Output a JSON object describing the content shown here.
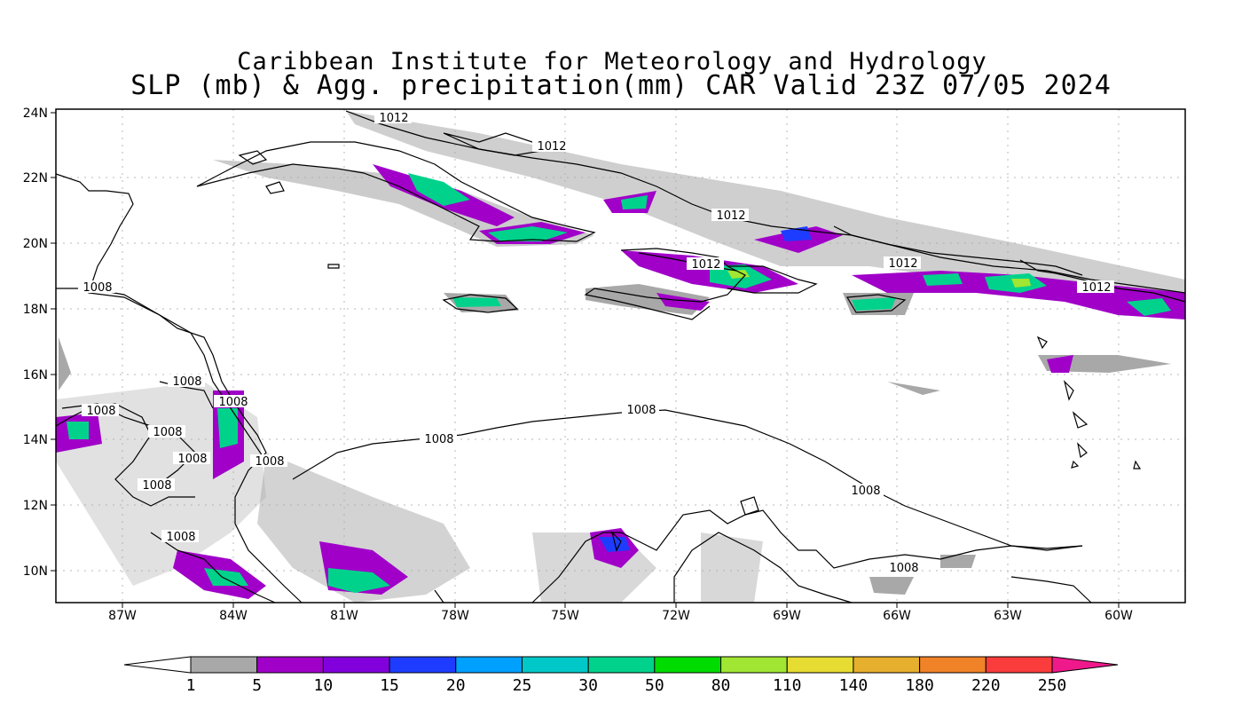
{
  "title": {
    "line1": "Caribbean Institute for Meteorology and Hydrology",
    "line2": "SLP (mb) & Agg. precipitation(mm) CAR Valid 23Z 07/05 2024"
  },
  "axes": {
    "lat_labels": [
      "24N",
      "22N",
      "20N",
      "18N",
      "16N",
      "14N",
      "12N",
      "10N"
    ],
    "lon_labels": [
      "87W",
      "84W",
      "81W",
      "78W",
      "75W",
      "72W",
      "69W",
      "66W",
      "63W",
      "60W"
    ]
  },
  "isobar_labels": [
    "1012",
    "1012",
    "1012",
    "1012",
    "1012",
    "1012",
    "1008",
    "1008",
    "1008",
    "1008",
    "1008",
    "1008",
    "1008",
    "1008",
    "1008",
    "1008",
    "1008",
    "1008",
    "1008"
  ],
  "colorbar": {
    "ticks": [
      "1",
      "5",
      "10",
      "15",
      "20",
      "25",
      "30",
      "50",
      "80",
      "110",
      "140",
      "180",
      "220",
      "250"
    ],
    "colors": [
      "#a8a8a8",
      "#a000c8",
      "#8200dc",
      "#1e3cff",
      "#00a0ff",
      "#00c8c8",
      "#00d28c",
      "#00dc00",
      "#a0e632",
      "#e6dc32",
      "#e6af2d",
      "#f08228",
      "#fa3c3c"
    ],
    "end_color": "#f0198c"
  },
  "colors": {
    "grey": "#a8a8a8",
    "purple": "#a000c8",
    "blue": "#1e3cff",
    "green": "#00d28c",
    "lime": "#a0e632"
  }
}
